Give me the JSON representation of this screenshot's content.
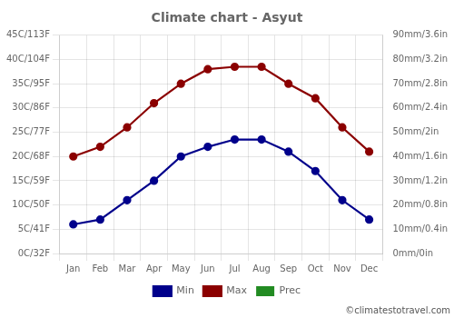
{
  "chart_data": {
    "type": "line",
    "title": "Climate chart - Asyut",
    "categories": [
      "Jan",
      "Feb",
      "Mar",
      "Apr",
      "May",
      "Jun",
      "Jul",
      "Aug",
      "Sep",
      "Oct",
      "Nov",
      "Dec"
    ],
    "series": [
      {
        "name": "Prec",
        "type": "bar",
        "axis": "y2",
        "color": "#228B22",
        "values": [
          0,
          0,
          0,
          0,
          0,
          0,
          0,
          0,
          0,
          0,
          0,
          0
        ]
      },
      {
        "name": "Min",
        "type": "line",
        "color": "#00008B",
        "marker": "circle",
        "values": [
          6,
          7,
          11,
          15,
          20,
          22,
          23.5,
          23.5,
          21,
          17,
          11,
          7
        ]
      },
      {
        "name": "Max",
        "type": "line",
        "color": "#8B0000",
        "marker": "circle",
        "values": [
          20,
          22,
          26,
          31,
          35,
          38,
          38.5,
          38.5,
          35,
          32,
          26,
          21
        ]
      }
    ],
    "ylim": [
      0,
      45
    ],
    "yticks": [
      {
        "value": 0,
        "label": "0C/32F"
      },
      {
        "value": 5,
        "label": "5C/41F"
      },
      {
        "value": 10,
        "label": "10C/50F"
      },
      {
        "value": 15,
        "label": "15C/59F"
      },
      {
        "value": 20,
        "label": "20C/68F"
      },
      {
        "value": 25,
        "label": "25C/77F"
      },
      {
        "value": 30,
        "label": "30C/86F"
      },
      {
        "value": 35,
        "label": "35C/95F"
      },
      {
        "value": 40,
        "label": "40C/104F"
      },
      {
        "value": 45,
        "label": "45C/113F"
      }
    ],
    "y2lim": [
      0,
      90
    ],
    "y2ticks": [
      {
        "value": 0,
        "label": "0mm/0in"
      },
      {
        "value": 10,
        "label": "10mm/0.4in"
      },
      {
        "value": 20,
        "label": "20mm/0.8in"
      },
      {
        "value": 30,
        "label": "30mm/1.2in"
      },
      {
        "value": 40,
        "label": "40mm/1.6in"
      },
      {
        "value": 50,
        "label": "50mm/2in"
      },
      {
        "value": 60,
        "label": "60mm/2.4in"
      },
      {
        "value": 70,
        "label": "70mm/2.8in"
      },
      {
        "value": 80,
        "label": "80mm/3.2in"
      },
      {
        "value": 90,
        "label": "90mm/3.6in"
      }
    ],
    "grid": true,
    "legend": "bottom",
    "annotations": [
      "©climatestotravel.com"
    ]
  }
}
